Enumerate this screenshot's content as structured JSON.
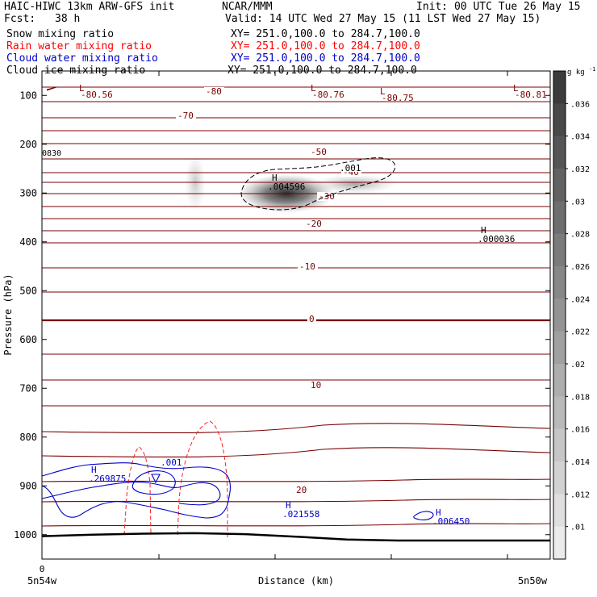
{
  "header": {
    "model": "HAIC-HIWC 13km ARW-GFS init",
    "agency": "NCAR/MMM",
    "init": "Init: 00 UTC Tue 26 May 15",
    "fcst_label": "Fcst:",
    "fcst_value": "38 h",
    "valid": "Valid: 14 UTC Wed 27 May 15 (11 LST Wed 27 May 15)",
    "fields": [
      {
        "name": "Snow mixing ratio",
        "xy": "XY= 251.0,100.0 to 284.7,100.0",
        "color": "#000000"
      },
      {
        "name": "Rain water mixing ratio",
        "xy": "XY= 251.0,100.0 to 284.7,100.0",
        "color": "#ff0000"
      },
      {
        "name": "Cloud water mixing ratio",
        "xy": "XY= 251.0,100.0 to 284.7,100.0",
        "color": "#0000c8"
      },
      {
        "name": "Cloud ice mixing ratio",
        "xy": "XY= 251.0,100.0 to 284.7,100.0",
        "color": "#000000"
      }
    ]
  },
  "chart_data": {
    "type": "heatmap",
    "xlabel": "Distance (km)",
    "ylabel": "Pressure (hPa)",
    "x_ticks": [
      {
        "value": 0,
        "label": "0"
      }
    ],
    "x_end_labels": [
      "5n54w",
      "5n50w"
    ],
    "y_ticks": [
      100,
      200,
      300,
      400,
      500,
      600,
      700,
      800,
      900,
      1000
    ],
    "ylim": [
      1050,
      50
    ],
    "colorbar": {
      "unit": "g kg",
      "unit_exp": "-1",
      "ticks": [
        ".036",
        ".034",
        ".032",
        ".03",
        ".028",
        ".026",
        ".024",
        ".022",
        ".02",
        ".018",
        ".016",
        ".014",
        ".012",
        ".01"
      ]
    },
    "temperature_contours": {
      "color": "#7a0000",
      "labels": [
        "-80",
        "-70",
        "-50",
        "-40",
        "-30",
        "-20",
        "-10",
        "0",
        "10",
        "20"
      ],
      "extrema": [
        {
          "type": "L",
          "value": "-80.56"
        },
        {
          "type": "L",
          "value": "-80.76"
        },
        {
          "type": "L",
          "value": "-80.75"
        },
        {
          "type": "L",
          "value": "-80.81"
        }
      ],
      "edge_label": "0830"
    },
    "snow": {
      "label": ".001",
      "max_label": "H",
      "max_value": ".004596",
      "secondary_max": ".000036"
    },
    "cloud_water": {
      "color": "#0000c8",
      "label": ".001",
      "maxima": [
        ".269875",
        ".021558",
        ".006450"
      ]
    },
    "rain": {
      "color": "#ff0000"
    },
    "terrain_pressure_hpa": [
      1003,
      1000,
      998,
      997,
      999,
      1004,
      1010,
      1012,
      1012,
      1012,
      1012
    ]
  }
}
